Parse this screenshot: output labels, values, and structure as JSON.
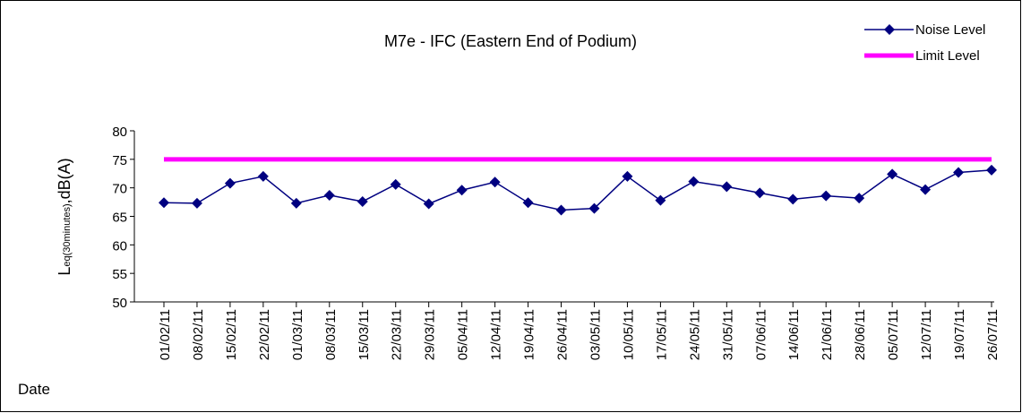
{
  "chart_data": {
    "type": "line",
    "title": "M7e - IFC (Eastern End of Podium)",
    "x_label": "Date",
    "y_label": {
      "main": "L",
      "sub": "eq(30minutes)",
      "unit": ",dB(A)"
    },
    "categories": [
      "01/02/11",
      "08/02/11",
      "15/02/11",
      "22/02/11",
      "01/03/11",
      "08/03/11",
      "15/03/11",
      "22/03/11",
      "29/03/11",
      "05/04/11",
      "12/04/11",
      "19/04/11",
      "26/04/11",
      "03/05/11",
      "10/05/11",
      "17/05/11",
      "24/05/11",
      "31/05/11",
      "07/06/11",
      "14/06/11",
      "21/06/11",
      "28/06/11",
      "05/07/11",
      "12/07/11",
      "19/07/11",
      "26/07/11"
    ],
    "series": [
      {
        "name": "Noise Level",
        "color": "#000080",
        "marker": "diamond",
        "values": [
          67.4,
          67.3,
          70.8,
          72.0,
          67.3,
          68.7,
          67.6,
          70.6,
          67.2,
          69.6,
          71.0,
          67.4,
          66.1,
          66.4,
          72.0,
          67.8,
          71.1,
          70.2,
          69.1,
          68.0,
          68.6,
          68.2,
          72.4,
          69.7,
          72.7,
          73.1
        ]
      },
      {
        "name": "Limit Level",
        "color": "#ff00ff",
        "values": [
          75,
          75,
          75,
          75,
          75,
          75,
          75,
          75,
          75,
          75,
          75,
          75,
          75,
          75,
          75,
          75,
          75,
          75,
          75,
          75,
          75,
          75,
          75,
          75,
          75,
          75
        ]
      }
    ],
    "ylim": [
      50,
      80
    ],
    "yticks": [
      50,
      55,
      60,
      65,
      70,
      75,
      80
    ],
    "legend": "top-right"
  }
}
